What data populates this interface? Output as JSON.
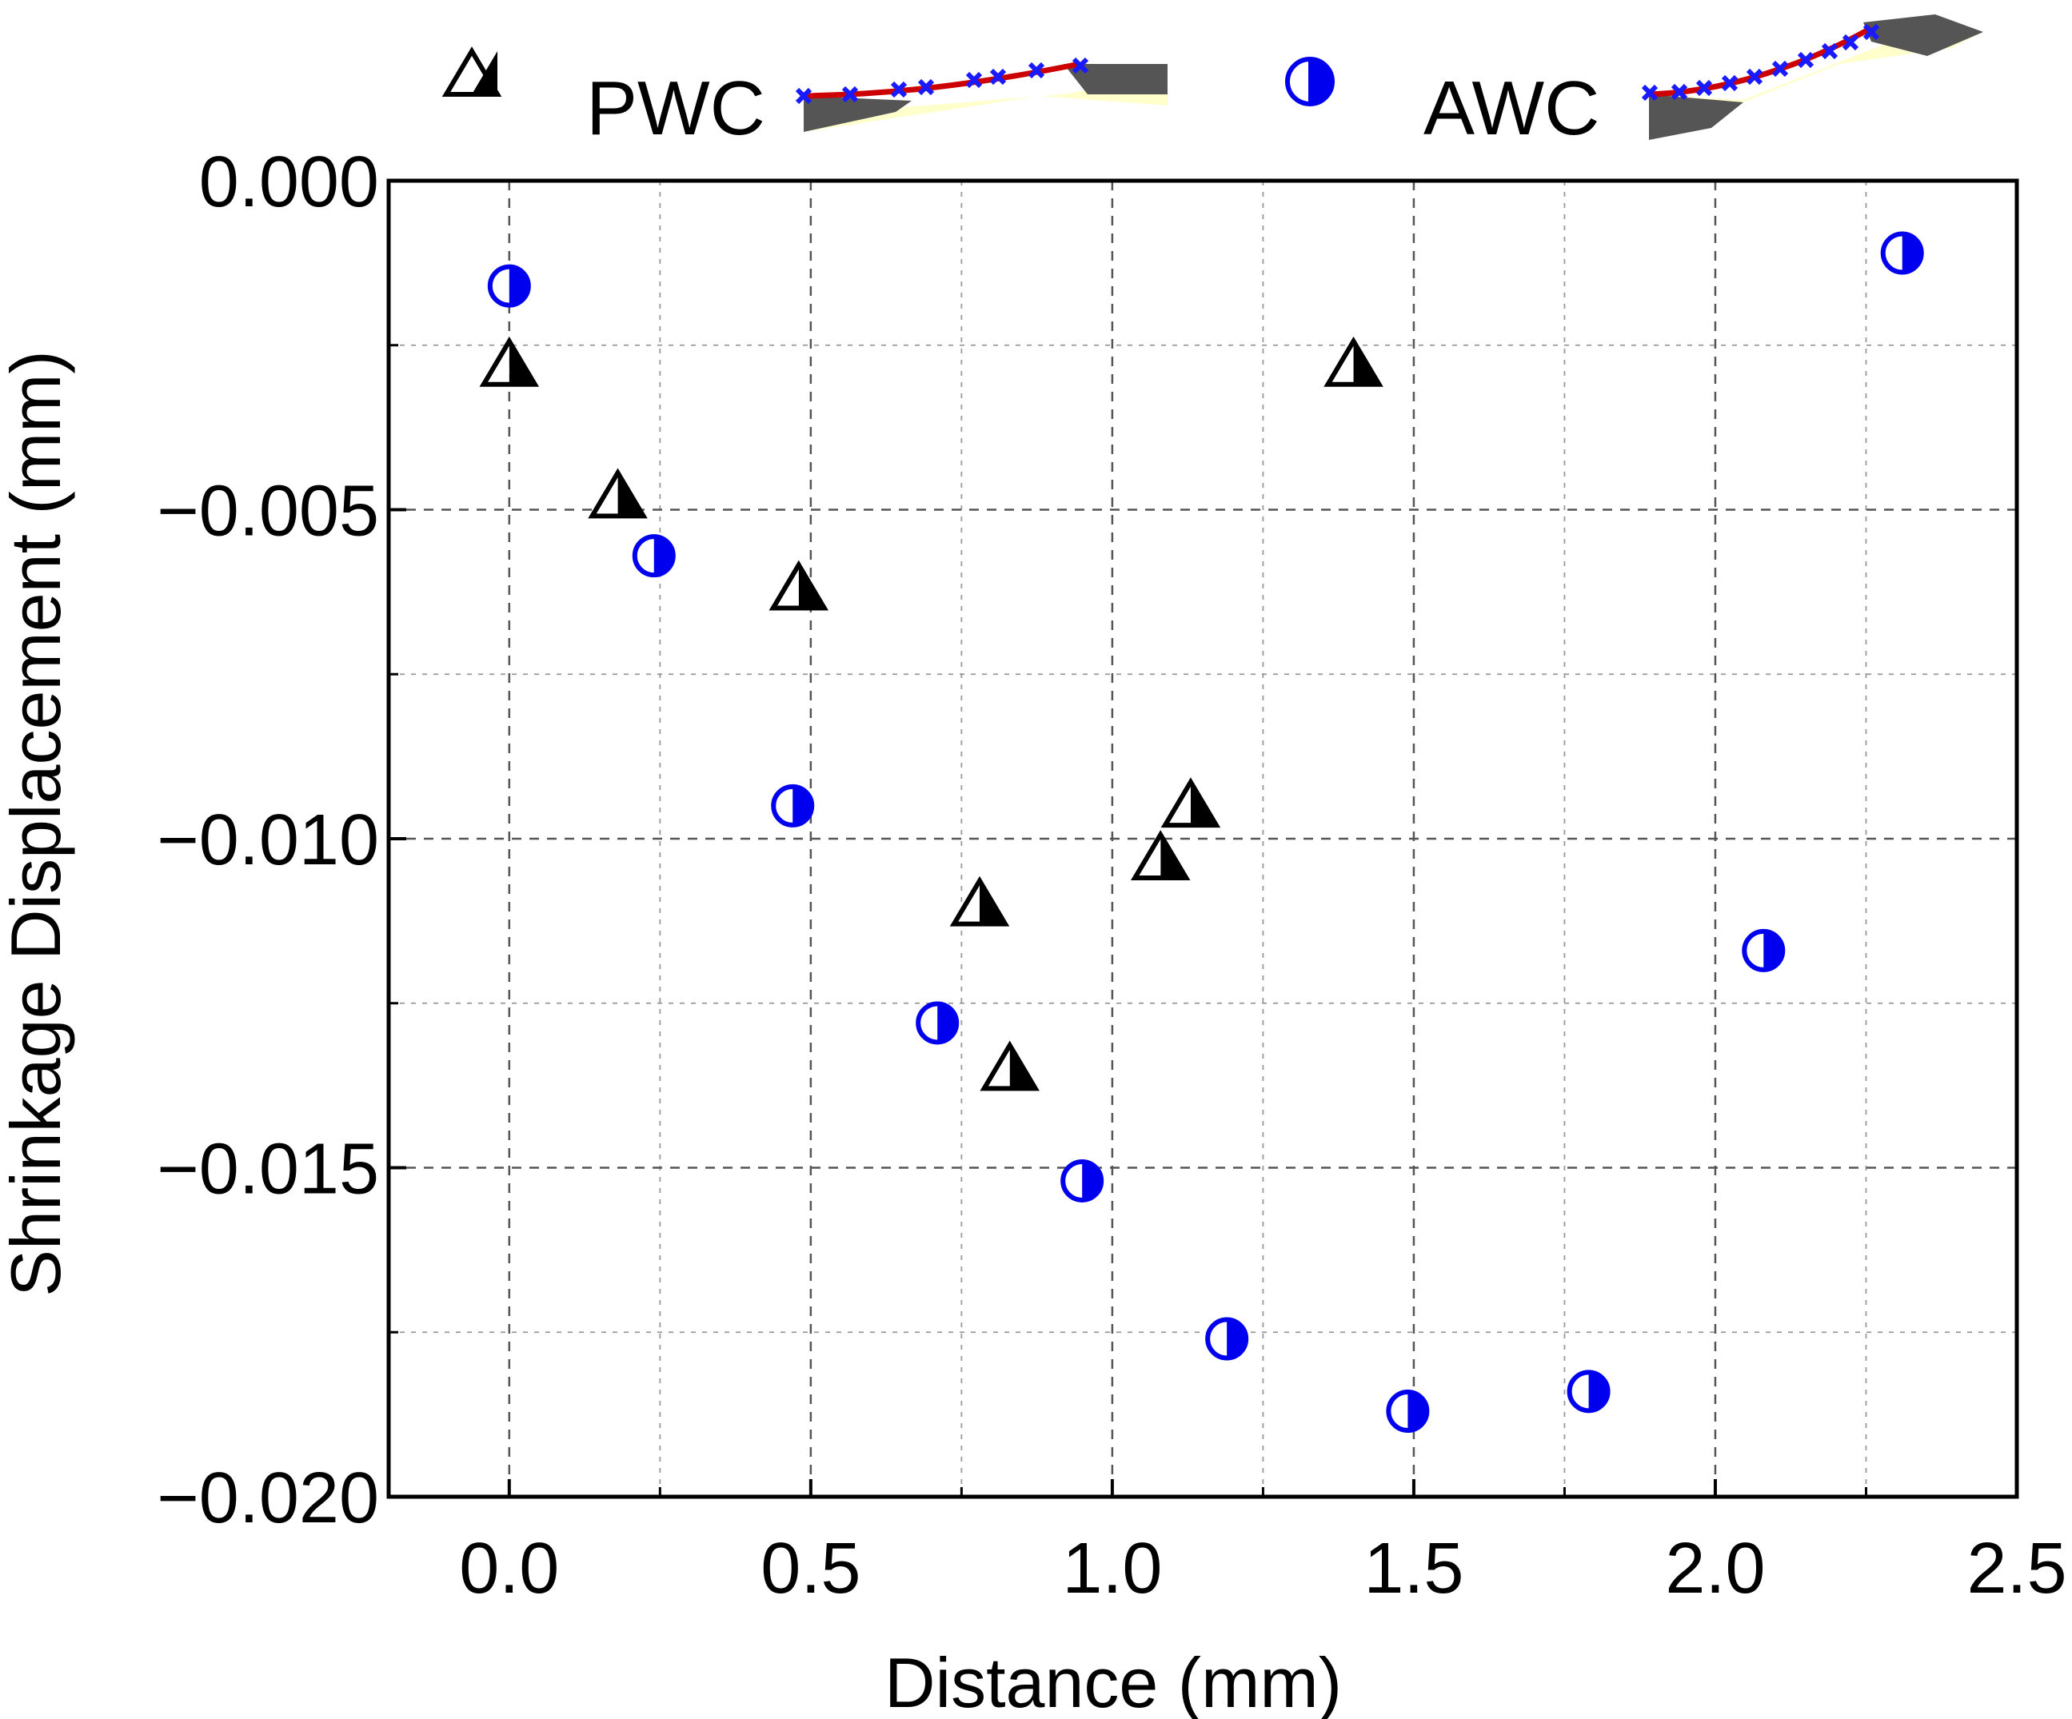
{
  "chart_data": {
    "type": "scatter",
    "title": "",
    "xlabel": "Distance (mm)",
    "ylabel": "Shrinkage Displacement (mm)",
    "xlim": [
      -0.2,
      2.5
    ],
    "ylim": [
      -0.02,
      0.0
    ],
    "x_ticks": [
      0.0,
      0.5,
      1.0,
      1.5,
      2.0,
      2.5
    ],
    "x_tick_labels": [
      "0.0",
      "0.5",
      "1.0",
      "1.5",
      "2.0",
      "2.5"
    ],
    "y_ticks": [
      0.0,
      -0.005,
      -0.01,
      -0.015,
      -0.02
    ],
    "y_tick_labels": [
      "0.000",
      "−0.005",
      "−0.010",
      "−0.015",
      "−0.020"
    ],
    "grid": true,
    "legend_position": "top",
    "series": [
      {
        "name": "PWC",
        "marker": "half-filled-triangle",
        "color": "#000000",
        "points": [
          {
            "x": 0.0,
            "y": -0.0028
          },
          {
            "x": 0.18,
            "y": -0.0048
          },
          {
            "x": 0.48,
            "y": -0.0062
          },
          {
            "x": 0.78,
            "y": -0.011
          },
          {
            "x": 0.83,
            "y": -0.0135
          },
          {
            "x": 1.08,
            "y": -0.0103
          },
          {
            "x": 1.13,
            "y": -0.0095
          },
          {
            "x": 1.4,
            "y": -0.0028
          }
        ]
      },
      {
        "name": "AWC",
        "marker": "half-filled-circle",
        "color": "#0000ee",
        "points": [
          {
            "x": 0.0,
            "y": -0.0016
          },
          {
            "x": 0.24,
            "y": -0.0057
          },
          {
            "x": 0.47,
            "y": -0.0095
          },
          {
            "x": 0.71,
            "y": -0.0128
          },
          {
            "x": 0.95,
            "y": -0.0152
          },
          {
            "x": 1.19,
            "y": -0.0176
          },
          {
            "x": 1.49,
            "y": -0.0187
          },
          {
            "x": 1.79,
            "y": -0.0184
          },
          {
            "x": 2.08,
            "y": -0.0117
          },
          {
            "x": 2.31,
            "y": -0.0011
          }
        ]
      }
    ]
  },
  "colors": {
    "axis": "#000000",
    "grid": "#555555",
    "awc_marker": "#0000ee",
    "pwc_marker": "#000000",
    "legend_weld_curve": "#cc0000",
    "legend_weld_marks": "#1a1aff",
    "legend_fill": "#ffffcc",
    "legend_plate": "#555555"
  }
}
